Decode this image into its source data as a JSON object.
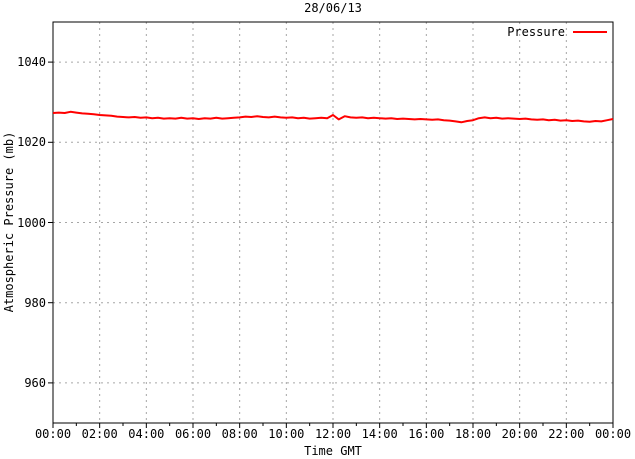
{
  "colors": {
    "series_red": "#ff0000",
    "grid": "#a6a6a6",
    "axis": "#000000",
    "text": "#000000",
    "background": "#ffffff"
  },
  "chart_data": {
    "type": "line",
    "title": "28/06/13",
    "xlabel": "Time GMT",
    "ylabel": "Atmospheric Pressure (mb)",
    "xlim_hours": [
      0,
      24
    ],
    "ylim": [
      950,
      1050
    ],
    "grid": "dashed major gridlines on",
    "legend_position": "top-right inside",
    "x_ticks": [
      {
        "h": 0,
        "label": "00:00"
      },
      {
        "h": 2,
        "label": "02:00"
      },
      {
        "h": 4,
        "label": "04:00"
      },
      {
        "h": 6,
        "label": "06:00"
      },
      {
        "h": 8,
        "label": "08:00"
      },
      {
        "h": 10,
        "label": "10:00"
      },
      {
        "h": 12,
        "label": "12:00"
      },
      {
        "h": 14,
        "label": "14:00"
      },
      {
        "h": 16,
        "label": "16:00"
      },
      {
        "h": 18,
        "label": "18:00"
      },
      {
        "h": 20,
        "label": "20:00"
      },
      {
        "h": 22,
        "label": "22:00"
      },
      {
        "h": 24,
        "label": "00:00"
      }
    ],
    "x_minor_tick_step_hours": 1,
    "y_ticks": [
      {
        "v": 960,
        "label": "960"
      },
      {
        "v": 980,
        "label": "980"
      },
      {
        "v": 1000,
        "label": "1000"
      },
      {
        "v": 1020,
        "label": "1020"
      },
      {
        "v": 1040,
        "label": "1040"
      }
    ],
    "series": [
      {
        "name": "Pressure",
        "color": "#ff0000",
        "x_start_hour": 0,
        "x_step_hours": 0.25,
        "values": [
          1027.3,
          1027.4,
          1027.3,
          1027.6,
          1027.4,
          1027.2,
          1027.1,
          1027.0,
          1026.8,
          1026.7,
          1026.6,
          1026.4,
          1026.3,
          1026.2,
          1026.3,
          1026.1,
          1026.2,
          1026.0,
          1026.1,
          1025.9,
          1026.0,
          1025.9,
          1026.1,
          1025.9,
          1026.0,
          1025.8,
          1026.0,
          1025.9,
          1026.1,
          1025.9,
          1026.0,
          1026.1,
          1026.2,
          1026.4,
          1026.3,
          1026.5,
          1026.3,
          1026.2,
          1026.4,
          1026.2,
          1026.1,
          1026.2,
          1026.0,
          1026.1,
          1025.9,
          1026.0,
          1026.1,
          1026.0,
          1026.8,
          1025.7,
          1026.5,
          1026.2,
          1026.1,
          1026.2,
          1026.0,
          1026.1,
          1026.0,
          1025.9,
          1026.0,
          1025.8,
          1025.9,
          1025.8,
          1025.7,
          1025.8,
          1025.7,
          1025.6,
          1025.7,
          1025.5,
          1025.4,
          1025.2,
          1025.0,
          1025.3,
          1025.5,
          1026.0,
          1026.2,
          1026.0,
          1026.1,
          1025.9,
          1026.0,
          1025.9,
          1025.8,
          1025.9,
          1025.7,
          1025.6,
          1025.7,
          1025.5,
          1025.6,
          1025.4,
          1025.5,
          1025.3,
          1025.4,
          1025.2,
          1025.1,
          1025.3,
          1025.2,
          1025.5,
          1025.8
        ]
      }
    ]
  },
  "legend": {
    "label": "Pressure"
  }
}
